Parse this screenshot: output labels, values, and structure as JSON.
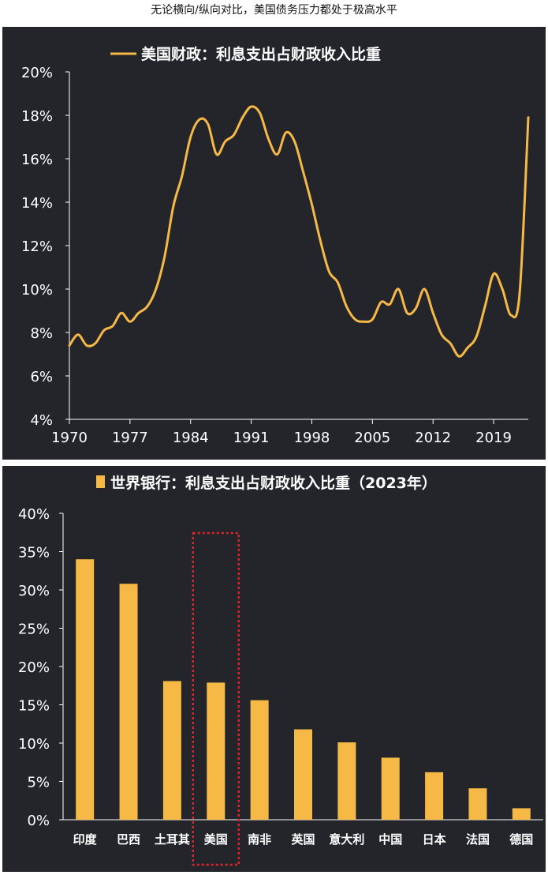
{
  "page_title": "无论横向/纵向对比，美国债务压力都处于极高水平",
  "colors": {
    "background": "#24252b",
    "series": "#f6b945",
    "axis": "#ffffff",
    "highlight": "#d9252b"
  },
  "chart_data": [
    {
      "type": "line",
      "title": "美国财政：利息支出占财政收入比重",
      "series": [
        {
          "name": "美国财政：利息支出占财政收入比重",
          "x": [
            1970,
            1971,
            1972,
            1973,
            1974,
            1975,
            1976,
            1977,
            1978,
            1979,
            1980,
            1981,
            1982,
            1983,
            1984,
            1985,
            1986,
            1987,
            1988,
            1989,
            1990,
            1991,
            1992,
            1993,
            1994,
            1995,
            1996,
            1997,
            1998,
            1999,
            2000,
            2001,
            2002,
            2003,
            2004,
            2005,
            2006,
            2007,
            2008,
            2009,
            2010,
            2011,
            2012,
            2013,
            2014,
            2015,
            2016,
            2017,
            2018,
            2019,
            2020,
            2021,
            2022,
            2023
          ],
          "y": [
            7.4,
            7.9,
            7.4,
            7.5,
            8.1,
            8.3,
            8.9,
            8.5,
            8.9,
            9.2,
            10.0,
            11.5,
            13.8,
            15.2,
            17.0,
            17.8,
            17.6,
            16.2,
            16.8,
            17.1,
            17.9,
            18.4,
            18.1,
            16.9,
            16.2,
            17.2,
            16.8,
            15.4,
            13.9,
            12.2,
            10.8,
            10.3,
            9.2,
            8.6,
            8.5,
            8.6,
            9.4,
            9.3,
            10.0,
            8.9,
            9.1,
            10.0,
            8.9,
            7.9,
            7.5,
            6.9,
            7.3,
            7.8,
            9.2,
            10.7,
            10.0,
            8.8,
            9.8,
            17.9
          ]
        }
      ],
      "xticks": [
        "1970",
        "1977",
        "1984",
        "1991",
        "1998",
        "2005",
        "2012",
        "2019"
      ],
      "xlim": [
        1970,
        2023
      ],
      "yticks": [
        "4%",
        "6%",
        "8%",
        "10%",
        "12%",
        "14%",
        "16%",
        "18%",
        "20%"
      ],
      "ylim": [
        4,
        20
      ],
      "legend": "top-center"
    },
    {
      "type": "bar",
      "title": "世界银行：利息支出占财政收入比重（2023年）",
      "series": [
        {
          "name": "世界银行：利息支出占财政收入比重（2023年）",
          "values": [
            34.0,
            30.8,
            18.1,
            17.9,
            15.6,
            11.8,
            10.1,
            8.1,
            6.2,
            4.1,
            1.5
          ]
        }
      ],
      "categories": [
        "印度",
        "巴西",
        "土耳其",
        "美国",
        "南非",
        "英国",
        "意大利",
        "中国",
        "日本",
        "法国",
        "德国"
      ],
      "highlighted_category": "美国",
      "yticks": [
        "0%",
        "5%",
        "10%",
        "15%",
        "20%",
        "25%",
        "30%",
        "35%",
        "40%"
      ],
      "ylim": [
        0,
        40
      ],
      "legend": "top-center"
    }
  ]
}
